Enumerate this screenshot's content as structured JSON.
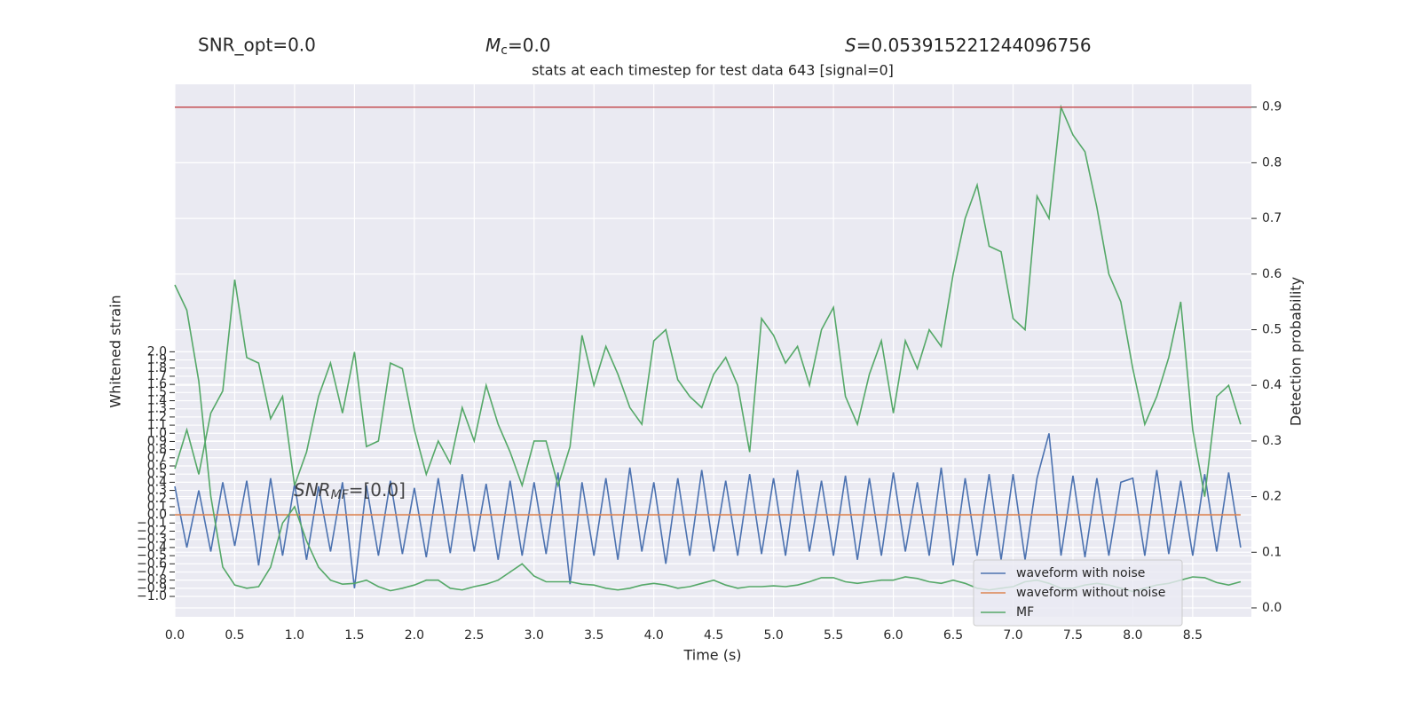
{
  "chart_data": {
    "type": "line",
    "title": "stats at each timestep for test data 643 [signal=0]",
    "header": {
      "snr_opt": "SNR_opt=0.0",
      "mc": {
        "main": "M",
        "sub": "c",
        "rest": "=0.0"
      },
      "s": {
        "main": "S",
        "rest": "=0.053915221244096756"
      }
    },
    "annotation": {
      "main": "SNR",
      "sub": "MF",
      "rest": "=[0.0]"
    },
    "xlabel": "Time (s)",
    "ylabel": "Whitened strain",
    "y2label": "Detection probability",
    "grid": true,
    "legend": "lower right",
    "xlim": [
      0,
      8.99
    ],
    "xticks": [
      {
        "value": 0,
        "label": "0.0"
      },
      0.5,
      {
        "value": 1,
        "label": "1.0"
      },
      1.5,
      {
        "value": 2,
        "label": "2.0"
      },
      2.5,
      {
        "value": 3,
        "label": "3.0"
      },
      3.5,
      {
        "value": 4,
        "label": "4.0"
      },
      4.5,
      {
        "value": 5,
        "label": "5.0"
      },
      5.5,
      {
        "value": 6,
        "label": "6.0"
      },
      6.5,
      {
        "value": 7,
        "label": "7.0"
      },
      7.5,
      {
        "value": 8,
        "label": "8.0"
      },
      8.5
    ],
    "ylim": [
      -1.25,
      5.28
    ],
    "yticks": [
      {
        "value": -1.0,
        "label": "−1.0"
      },
      {
        "value": -0.9,
        "label": "−0.9"
      },
      {
        "value": -0.8,
        "label": "−0.8"
      },
      {
        "value": -0.7,
        "label": "−0.7"
      },
      {
        "value": -0.6,
        "label": "−0.6"
      },
      {
        "value": -0.5,
        "label": "−0.5"
      },
      {
        "value": -0.4,
        "label": "−0.4"
      },
      {
        "value": -0.3,
        "label": "−0.3"
      },
      {
        "value": -0.2,
        "label": "−0.2"
      },
      {
        "value": -0.1,
        "label": "−0.1"
      },
      {
        "value": 0,
        "label": "0.0"
      },
      0.1,
      0.2,
      0.3,
      0.4,
      0.5,
      0.6,
      0.7,
      0.8,
      0.9,
      {
        "value": 1,
        "label": "1.0"
      },
      1.1,
      1.2,
      1.3,
      1.4,
      1.5,
      1.6,
      1.7,
      1.8,
      1.9,
      {
        "value": 2,
        "label": "2.0"
      }
    ],
    "y2lim": [
      -0.016,
      0.941
    ],
    "y2ticks": [
      {
        "value": 0,
        "label": "0.0"
      },
      0.1,
      0.2,
      0.3,
      0.4,
      0.5,
      0.6,
      0.7,
      0.8,
      0.9
    ],
    "hlines": [
      {
        "value": 0.9,
        "axis": "y2",
        "color": "#c44e52"
      }
    ],
    "x": [
      0.0,
      0.1,
      0.2,
      0.3,
      0.4,
      0.5,
      0.6,
      0.7,
      0.8,
      0.9,
      1.0,
      1.1,
      1.2,
      1.3,
      1.4,
      1.5,
      1.6,
      1.7,
      1.8,
      1.9,
      2.0,
      2.1,
      2.2,
      2.3,
      2.4,
      2.5,
      2.6,
      2.7,
      2.8,
      2.9,
      3.0,
      3.1,
      3.2,
      3.3,
      3.4,
      3.5,
      3.6,
      3.7,
      3.8,
      3.9,
      4.0,
      4.1,
      4.2,
      4.3,
      4.4,
      4.5,
      4.6,
      4.7,
      4.8,
      4.9,
      5.0,
      5.1,
      5.2,
      5.3,
      5.4,
      5.5,
      5.6,
      5.7,
      5.8,
      5.9,
      6.0,
      6.1,
      6.2,
      6.3,
      6.4,
      6.5,
      6.6,
      6.7,
      6.8,
      6.9,
      7.0,
      7.1,
      7.2,
      7.3,
      7.4,
      7.5,
      7.6,
      7.7,
      7.8,
      7.9,
      8.0,
      8.1,
      8.2,
      8.3,
      8.4,
      8.5,
      8.6,
      8.7,
      8.8,
      8.9
    ],
    "series": [
      {
        "name": "waveform with noise",
        "color": "#4c72b0",
        "values": [
          0.35,
          -0.4,
          0.3,
          -0.45,
          0.4,
          -0.38,
          0.42,
          -0.62,
          0.45,
          -0.5,
          0.38,
          -0.55,
          0.35,
          -0.45,
          0.4,
          -0.9,
          0.36,
          -0.5,
          0.42,
          -0.48,
          0.33,
          -0.52,
          0.45,
          -0.47,
          0.5,
          -0.45,
          0.38,
          -0.55,
          0.42,
          -0.5,
          0.4,
          -0.48,
          0.52,
          -0.85,
          0.4,
          -0.5,
          0.45,
          -0.55,
          0.58,
          -0.45,
          0.4,
          -0.6,
          0.45,
          -0.5,
          0.55,
          -0.45,
          0.42,
          -0.5,
          0.5,
          -0.48,
          0.45,
          -0.5,
          0.55,
          -0.45,
          0.42,
          -0.5,
          0.48,
          -0.55,
          0.45,
          -0.5,
          0.52,
          -0.45,
          0.4,
          -0.5,
          0.58,
          -0.62,
          0.45,
          -0.5,
          0.5,
          -0.55,
          0.5,
          -0.55,
          0.45,
          1.0,
          -0.5,
          0.48,
          -0.52,
          0.45,
          -0.5,
          0.4,
          0.45,
          -0.5,
          0.55,
          -0.48,
          0.42,
          -0.5,
          0.5,
          -0.45,
          0.52,
          -0.4
        ]
      },
      {
        "name": "waveform without noise",
        "color": "#dd8452",
        "values": [
          0,
          0,
          0,
          0,
          0,
          0,
          0,
          0,
          0,
          0,
          0,
          0,
          0,
          0,
          0,
          0,
          0,
          0,
          0,
          0,
          0,
          0,
          0,
          0,
          0,
          0,
          0,
          0,
          0,
          0,
          0,
          0,
          0,
          0,
          0,
          0,
          0,
          0,
          0,
          0,
          0,
          0,
          0,
          0,
          0,
          0,
          0,
          0,
          0,
          0,
          0,
          0,
          0,
          0,
          0,
          0,
          0,
          0,
          0,
          0,
          0,
          0,
          0,
          0,
          0,
          0,
          0,
          0,
          0,
          0,
          0,
          0,
          0,
          0,
          0,
          0,
          0,
          0,
          0,
          0,
          0,
          0,
          0,
          0,
          0,
          0,
          0,
          0,
          0,
          0
        ]
      },
      {
        "name": "MF",
        "color": "#55a868",
        "values": [
          2.82,
          2.51,
          1.64,
          0.23,
          -0.64,
          -0.86,
          -0.9,
          -0.88,
          -0.64,
          -0.1,
          0.1,
          -0.32,
          -0.64,
          -0.8,
          -0.85,
          -0.84,
          -0.8,
          -0.88,
          -0.93,
          -0.9,
          -0.86,
          -0.8,
          -0.8,
          -0.9,
          -0.92,
          -0.88,
          -0.85,
          -0.8,
          -0.7,
          -0.6,
          -0.75,
          -0.82,
          -0.82,
          -0.82,
          -0.85,
          -0.86,
          -0.9,
          -0.92,
          -0.9,
          -0.86,
          -0.84,
          -0.86,
          -0.9,
          -0.88,
          -0.84,
          -0.8,
          -0.86,
          -0.9,
          -0.88,
          -0.88,
          -0.87,
          -0.88,
          -0.86,
          -0.82,
          -0.77,
          -0.77,
          -0.82,
          -0.84,
          -0.82,
          -0.8,
          -0.8,
          -0.76,
          -0.78,
          -0.82,
          -0.84,
          -0.8,
          -0.84,
          -0.9,
          -0.92,
          -0.9,
          -0.88,
          -0.82,
          -0.8,
          -0.84,
          -0.9,
          -0.9,
          -0.86,
          -0.84,
          -0.86,
          -0.9,
          -0.94,
          -0.9,
          -0.86,
          -0.84,
          -0.8,
          -0.76,
          -0.77,
          -0.83,
          -0.86,
          -0.82
        ]
      },
      {
        "axis": "y2",
        "color": "#55a868",
        "values": [
          0.25,
          0.32,
          0.24,
          0.35,
          0.39,
          0.59,
          0.45,
          0.44,
          0.34,
          0.38,
          0.22,
          0.28,
          0.38,
          0.44,
          0.35,
          0.46,
          0.29,
          0.3,
          0.44,
          0.43,
          0.32,
          0.24,
          0.3,
          0.26,
          0.36,
          0.3,
          0.4,
          0.33,
          0.28,
          0.22,
          0.3,
          0.3,
          0.22,
          0.29,
          0.49,
          0.4,
          0.47,
          0.42,
          0.36,
          0.33,
          0.48,
          0.5,
          0.41,
          0.38,
          0.36,
          0.42,
          0.45,
          0.4,
          0.28,
          0.52,
          0.49,
          0.44,
          0.47,
          0.4,
          0.5,
          0.54,
          0.38,
          0.33,
          0.42,
          0.48,
          0.35,
          0.48,
          0.43,
          0.5,
          0.47,
          0.6,
          0.7,
          0.76,
          0.65,
          0.64,
          0.52,
          0.5,
          0.74,
          0.7,
          0.9,
          0.85,
          0.82,
          0.72,
          0.6,
          0.55,
          0.43,
          0.33,
          0.38,
          0.45,
          0.55,
          0.32,
          0.2,
          0.38,
          0.4,
          0.33
        ]
      }
    ]
  }
}
